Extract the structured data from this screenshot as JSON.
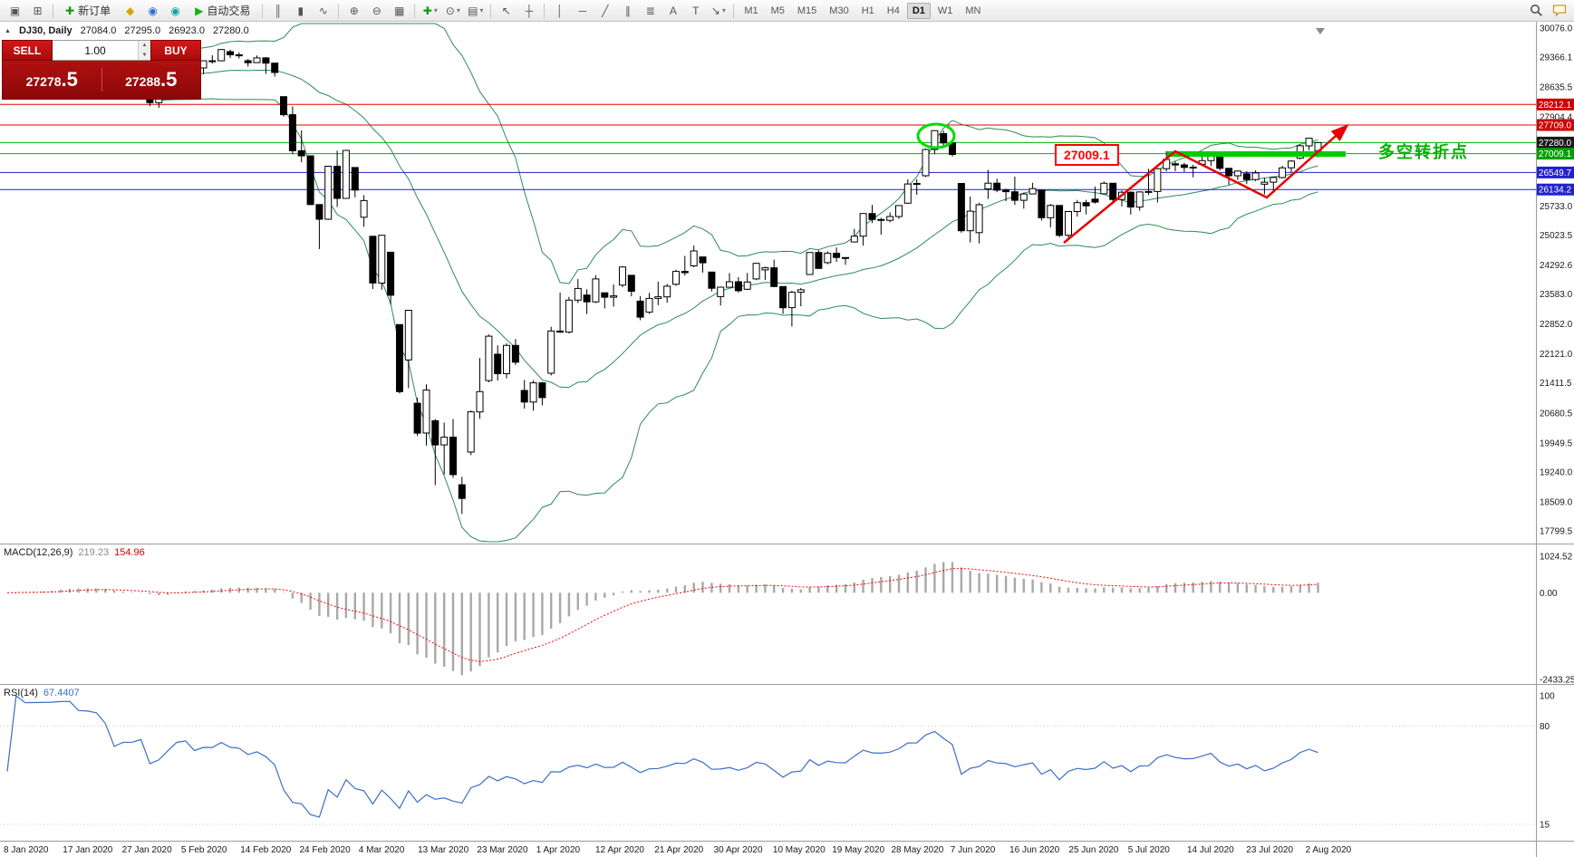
{
  "toolbar": {
    "items": [
      {
        "t": "icon",
        "name": "window-icon",
        "glyph": "▣"
      },
      {
        "t": "icon",
        "name": "new-chart-icon",
        "glyph": "⊞"
      },
      {
        "t": "sep"
      },
      {
        "t": "button",
        "name": "new-order-button",
        "glyph": "✚",
        "color": "#149914",
        "label": "新订单"
      },
      {
        "t": "icon",
        "name": "metaeditor-icon",
        "glyph": "◆",
        "color": "#d9a300"
      },
      {
        "t": "icon",
        "name": "community-icon",
        "glyph": "◉",
        "color": "#2f6fd0"
      },
      {
        "t": "icon",
        "name": "mql5-icon",
        "glyph": "◉",
        "color": "#0ba3a3"
      },
      {
        "t": "button",
        "name": "autotrading-button",
        "glyph": "▶",
        "color": "#12b212",
        "label": "自动交易"
      },
      {
        "t": "sep"
      },
      {
        "t": "icon",
        "name": "bar-chart-icon",
        "glyph": "║"
      },
      {
        "t": "icon",
        "name": "candlestick-chart-icon",
        "glyph": "▮"
      },
      {
        "t": "icon",
        "name": "line-chart-icon",
        "glyph": "∿"
      },
      {
        "t": "sep"
      },
      {
        "t": "icon",
        "name": "zoom-in-icon",
        "glyph": "⊕"
      },
      {
        "t": "icon",
        "name": "zoom-out-icon",
        "glyph": "⊖"
      },
      {
        "t": "icon",
        "name": "tile-windows-icon",
        "glyph": "▦"
      },
      {
        "t": "sep"
      },
      {
        "t": "icon",
        "name": "indicators-icon",
        "glyph": "✚",
        "color": "#149914",
        "dd": true
      },
      {
        "t": "icon",
        "name": "periods-icon",
        "glyph": "⊙",
        "dd": true
      },
      {
        "t": "icon",
        "name": "templates-icon",
        "glyph": "▤",
        "dd": true
      },
      {
        "t": "sep"
      },
      {
        "t": "icon",
        "name": "cursor-icon",
        "glyph": "↖"
      },
      {
        "t": "icon",
        "name": "crosshair-icon",
        "glyph": "┼"
      },
      {
        "t": "sep"
      },
      {
        "t": "icon",
        "name": "vertical-line-icon",
        "glyph": "│"
      },
      {
        "t": "icon",
        "name": "horizontal-line-icon",
        "glyph": "─"
      },
      {
        "t": "icon",
        "name": "trendline-icon",
        "glyph": "╱"
      },
      {
        "t": "icon",
        "name": "channel-icon",
        "glyph": "∥"
      },
      {
        "t": "icon",
        "name": "fibonacci-icon",
        "glyph": "≣"
      },
      {
        "t": "icon",
        "name": "text-icon",
        "glyph": "A"
      },
      {
        "t": "icon",
        "name": "label-icon",
        "glyph": "T"
      },
      {
        "t": "icon",
        "name": "arrows-icon",
        "glyph": "↘",
        "dd": true
      },
      {
        "t": "sep"
      }
    ],
    "timeframes": {
      "options": [
        "M1",
        "M5",
        "M15",
        "M30",
        "H1",
        "H4",
        "D1",
        "W1",
        "MN"
      ],
      "active": "D1"
    }
  },
  "symbol_bar": {
    "collapse_glyph": "▲",
    "symbol": "DJ30, Daily",
    "open": "27084.0",
    "high": "27295.0",
    "low": "26923.0",
    "close": "27280.0"
  },
  "trade_panel": {
    "sell_label": "SELL",
    "buy_label": "BUY",
    "volume": "1.00",
    "spin_up": "▲",
    "spin_down": "▼",
    "sell_price_main": "27278",
    "sell_price_pips": ".5",
    "buy_price_main": "27288",
    "buy_price_pips": ".5"
  },
  "price_axis": {
    "max": 30076.0,
    "min": 17799.5,
    "gridlines": [
      {
        "label": "30076.0",
        "value": 30076.0
      },
      {
        "label": "29366.1",
        "value": 29366.1
      },
      {
        "label": "28635.5",
        "value": 28635.5
      },
      {
        "label": "27904.4",
        "value": 27904.4
      },
      {
        "label": "25733.0",
        "value": 25733.0
      },
      {
        "label": "25023.5",
        "value": 25023.5
      },
      {
        "label": "24292.6",
        "value": 24292.6
      },
      {
        "label": "23583.0",
        "value": 23583.0
      },
      {
        "label": "22852.0",
        "value": 22852.0
      },
      {
        "label": "22121.0",
        "value": 22121.0
      },
      {
        "label": "21411.5",
        "value": 21411.5
      },
      {
        "label": "20680.5",
        "value": 20680.5
      },
      {
        "label": "19949.5",
        "value": 19949.5
      },
      {
        "label": "19240.0",
        "value": 19240.0
      },
      {
        "label": "18509.0",
        "value": 18509.0
      },
      {
        "label": "17799.5",
        "value": 17799.5
      }
    ]
  },
  "levels": [
    {
      "label": "28212.1",
      "value": 28212.1,
      "line_color": "#e00000",
      "tag_color": "#d00000"
    },
    {
      "label": "27709.0",
      "value": 27709.0,
      "line_color": "#e00000",
      "tag_color": "#d00000"
    },
    {
      "label": "27280.0",
      "value": 27280.0,
      "line_color": "#00b300",
      "tag_color": "#1a1a1a",
      "current": true
    },
    {
      "label": "27009.1",
      "value": 27009.1,
      "line_color": "#00b300",
      "tag_color": "#00a000"
    },
    {
      "label": "26549.7",
      "value": 26549.7,
      "line_color": "#2222cc",
      "tag_color": "#2222cc"
    },
    {
      "label": "26134.2",
      "value": 26134.2,
      "line_color": "#2222cc",
      "tag_color": "#2222cc"
    }
  ],
  "chart": {
    "type": "candlestick",
    "symbol": "DJ30",
    "timeframe": "Daily",
    "bollinger": {
      "period": 20,
      "deviation": 2
    },
    "candles": [
      [
        28639,
        28812,
        28565,
        28745
      ],
      [
        28745,
        28988,
        28720,
        28957
      ],
      [
        28957,
        29009,
        28786,
        28824
      ],
      [
        28824,
        28925,
        28755,
        28907
      ],
      [
        28907,
        29054,
        28830,
        28939
      ],
      [
        28939,
        29127,
        28897,
        29030
      ],
      [
        29030,
        29300,
        29010,
        29298
      ],
      [
        29298,
        29373,
        29232,
        29348
      ],
      [
        29348,
        29349,
        29100,
        29196
      ],
      [
        29196,
        29320,
        29143,
        29186
      ],
      [
        29186,
        29226,
        28967,
        29160
      ],
      [
        29160,
        29288,
        28843,
        28990
      ],
      [
        28600,
        28671,
        28440,
        28536
      ],
      [
        28536,
        28790,
        28500,
        28723
      ],
      [
        28723,
        28891,
        28682,
        28734
      ],
      [
        28734,
        28886,
        28460,
        28859
      ],
      [
        28859,
        28860,
        28169,
        28256
      ],
      [
        28256,
        28490,
        28130,
        28400
      ],
      [
        28400,
        28905,
        28380,
        28808
      ],
      [
        28808,
        29309,
        28760,
        29291
      ],
      [
        29291,
        29409,
        29246,
        29380
      ],
      [
        29380,
        29385,
        29056,
        29103
      ],
      [
        29103,
        29280,
        28950,
        29277
      ],
      [
        29277,
        29415,
        29210,
        29276
      ],
      [
        29276,
        29568,
        29275,
        29551
      ],
      [
        29500,
        29550,
        29345,
        29423
      ],
      [
        29423,
        29481,
        29333,
        29398
      ],
      [
        29280,
        29320,
        29135,
        29232
      ],
      [
        29232,
        29409,
        29230,
        29348
      ],
      [
        29348,
        29368,
        28960,
        29220
      ],
      [
        29220,
        29222,
        28893,
        28992
      ],
      [
        28402,
        28403,
        27912,
        27961
      ],
      [
        27961,
        28164,
        26998,
        27081
      ],
      [
        27081,
        27580,
        26800,
        26958
      ],
      [
        26958,
        26959,
        25752,
        25767
      ],
      [
        25767,
        25768,
        24681,
        25409
      ],
      [
        25409,
        26706,
        25391,
        26703
      ],
      [
        26703,
        27084,
        25707,
        25917
      ],
      [
        25917,
        27102,
        25916,
        27090
      ],
      [
        26671,
        26672,
        25943,
        26121
      ],
      [
        25457,
        25994,
        25226,
        25865
      ],
      [
        24992,
        24993,
        23706,
        23851
      ],
      [
        23851,
        25020,
        23690,
        25018
      ],
      [
        24604,
        24605,
        23328,
        23553
      ],
      [
        22837,
        22838,
        21154,
        21201
      ],
      [
        21973,
        23189,
        21286,
        23186
      ],
      [
        20917,
        21051,
        20117,
        20188
      ],
      [
        20188,
        21379,
        19882,
        21237
      ],
      [
        20489,
        20532,
        18917,
        19899
      ],
      [
        19899,
        20442,
        19177,
        20087
      ],
      [
        20087,
        20531,
        19094,
        19174
      ],
      [
        18926,
        19121,
        18213,
        18592
      ],
      [
        19722,
        20738,
        19649,
        20705
      ],
      [
        20705,
        22020,
        20538,
        21200
      ],
      [
        21468,
        22595,
        21427,
        22552
      ],
      [
        22112,
        22327,
        21469,
        21637
      ],
      [
        21637,
        22378,
        21522,
        22327
      ],
      [
        22327,
        22482,
        21852,
        21917
      ],
      [
        21227,
        21487,
        20784,
        20944
      ],
      [
        20944,
        21477,
        20735,
        21413
      ],
      [
        21413,
        21438,
        20863,
        21053
      ],
      [
        21650,
        22783,
        21595,
        22680
      ],
      [
        22680,
        23618,
        22634,
        22654
      ],
      [
        22654,
        23513,
        22620,
        23434
      ],
      [
        23434,
        23946,
        23361,
        23719
      ],
      [
        23558,
        23698,
        23096,
        23391
      ],
      [
        23391,
        24041,
        23361,
        23950
      ],
      [
        23612,
        23613,
        23232,
        23504
      ],
      [
        23504,
        23817,
        23276,
        23538
      ],
      [
        23800,
        24264,
        23750,
        24242
      ],
      [
        24040,
        24041,
        23526,
        23650
      ],
      [
        23410,
        23535,
        22942,
        23019
      ],
      [
        23139,
        23613,
        23100,
        23476
      ],
      [
        23476,
        23885,
        23310,
        23515
      ],
      [
        23515,
        23829,
        23371,
        23775
      ],
      [
        23820,
        24174,
        23782,
        24134
      ],
      [
        24134,
        24512,
        24032,
        24102
      ],
      [
        24270,
        24765,
        24236,
        24634
      ],
      [
        24489,
        24490,
        24106,
        24346
      ],
      [
        24120,
        24121,
        23645,
        23724
      ],
      [
        23520,
        23765,
        23301,
        23749
      ],
      [
        23749,
        24094,
        23740,
        23883
      ],
      [
        23883,
        23995,
        23617,
        23665
      ],
      [
        23700,
        24094,
        23680,
        23876
      ],
      [
        23950,
        24349,
        23920,
        24331
      ],
      [
        24172,
        24250,
        23924,
        24222
      ],
      [
        24222,
        24422,
        23755,
        23765
      ],
      [
        23765,
        23766,
        23097,
        23248
      ],
      [
        23248,
        23658,
        22790,
        23625
      ],
      [
        23625,
        23730,
        23282,
        23685
      ],
      [
        24060,
        24602,
        24059,
        24597
      ],
      [
        24597,
        24647,
        24199,
        24207
      ],
      [
        24348,
        24625,
        24310,
        24576
      ],
      [
        24576,
        24718,
        24369,
        24474
      ],
      [
        24474,
        24481,
        24294,
        24465
      ],
      [
        24854,
        25176,
        24843,
        24995
      ],
      [
        24995,
        25549,
        24765,
        25548
      ],
      [
        25548,
        25758,
        25317,
        25401
      ],
      [
        25401,
        25442,
        25031,
        25383
      ],
      [
        25383,
        25573,
        25334,
        25475
      ],
      [
        25475,
        25747,
        25418,
        25743
      ],
      [
        25800,
        26384,
        25790,
        26270
      ],
      [
        26270,
        26385,
        26004,
        26282
      ],
      [
        26470,
        27133,
        26440,
        27111
      ],
      [
        27111,
        27580,
        26998,
        27572
      ],
      [
        27500,
        27572,
        27151,
        27272
      ],
      [
        27272,
        27355,
        26938,
        26990
      ],
      [
        26282,
        26294,
        25082,
        25128
      ],
      [
        25128,
        25965,
        24843,
        25605
      ],
      [
        25081,
        25813,
        24817,
        25763
      ],
      [
        26150,
        26611,
        25905,
        26290
      ],
      [
        26290,
        26400,
        26068,
        26120
      ],
      [
        26120,
        26154,
        25848,
        26080
      ],
      [
        26080,
        26451,
        25759,
        25871
      ],
      [
        25871,
        26059,
        25667,
        26025
      ],
      [
        26025,
        26298,
        26016,
        26156
      ],
      [
        26116,
        26117,
        25376,
        25446
      ],
      [
        25446,
        25782,
        25210,
        25746
      ],
      [
        25746,
        25747,
        24971,
        25016
      ],
      [
        25016,
        25602,
        24927,
        25596
      ],
      [
        25596,
        25880,
        25476,
        25813
      ],
      [
        25813,
        25881,
        25524,
        25735
      ],
      [
        25900,
        26205,
        25792,
        25827
      ],
      [
        26030,
        26334,
        26020,
        26287
      ],
      [
        26287,
        26289,
        25836,
        25890
      ],
      [
        25890,
        26109,
        25720,
        26067
      ],
      [
        26067,
        26093,
        25523,
        25706
      ],
      [
        25706,
        26089,
        25619,
        26075
      ],
      [
        26075,
        26639,
        25997,
        26086
      ],
      [
        26086,
        26659,
        25817,
        26643
      ],
      [
        26643,
        27071,
        26578,
        26870
      ],
      [
        26763,
        26823,
        26584,
        26735
      ],
      [
        26735,
        26787,
        26565,
        26672
      ],
      [
        26672,
        26741,
        26433,
        26681
      ],
      [
        26750,
        27036,
        26720,
        26840
      ],
      [
        26840,
        27023,
        26707,
        27006
      ],
      [
        27006,
        27014,
        26602,
        26652
      ],
      [
        26652,
        26653,
        26246,
        26470
      ],
      [
        26470,
        26603,
        26369,
        26585
      ],
      [
        26520,
        26585,
        26268,
        26379
      ],
      [
        26379,
        26604,
        26339,
        26540
      ],
      [
        26265,
        26417,
        26016,
        26313
      ],
      [
        26313,
        26443,
        26052,
        26428
      ],
      [
        26428,
        26714,
        26407,
        26664
      ],
      [
        26664,
        26850,
        26551,
        26828
      ],
      [
        26900,
        27230,
        26870,
        27202
      ],
      [
        27202,
        27398,
        27095,
        27387
      ],
      [
        27084,
        27295,
        26923,
        27280
      ]
    ]
  },
  "time_axis": {
    "dates": [
      "8 Jan 2020",
      "17 Jan 2020",
      "27 Jan 2020",
      "5 Feb 2020",
      "14 Feb 2020",
      "24 Feb 2020",
      "4 Mar 2020",
      "13 Mar 2020",
      "23 Mar 2020",
      "1 Apr 2020",
      "12 Apr 2020",
      "21 Apr 2020",
      "30 Apr 2020",
      "10 May 2020",
      "19 May 2020",
      "28 May 2020",
      "7 Jun 2020",
      "16 Jun 2020",
      "25 Jun 2020",
      "5 Jul 2020",
      "14 Jul 2020",
      "23 Jul 2020",
      "2 Aug 2020"
    ]
  },
  "macd": {
    "name": "MACD(12,26,9)",
    "value_main": "219.23",
    "value_signal": "154.96",
    "fast": 12,
    "slow": 26,
    "smooth": 9,
    "axis": [
      {
        "label": "1024.52",
        "value": 1024.52
      },
      {
        "label": "0.00",
        "value": 0
      },
      {
        "label": "-2433.25",
        "value": -2433.25
      }
    ]
  },
  "rsi": {
    "name": "RSI(14)",
    "value": "67.4407",
    "period": 14,
    "axis": [
      {
        "label": "100",
        "value": 100
      },
      {
        "label": "80",
        "value": 80
      },
      {
        "label": "15",
        "value": 15
      }
    ],
    "levels": [
      80,
      15
    ]
  },
  "annotations": {
    "price_callout": "27009.1",
    "turning_point": "多空转折点"
  },
  "colors": {
    "bollinger": "#2e8b57",
    "macd_hist": "#a8a8a8",
    "macd_signal": "#ff0000",
    "rsi_line": "#3a6fc4",
    "annotation_green": "#00cc00",
    "annotation_red": "#e60000"
  }
}
